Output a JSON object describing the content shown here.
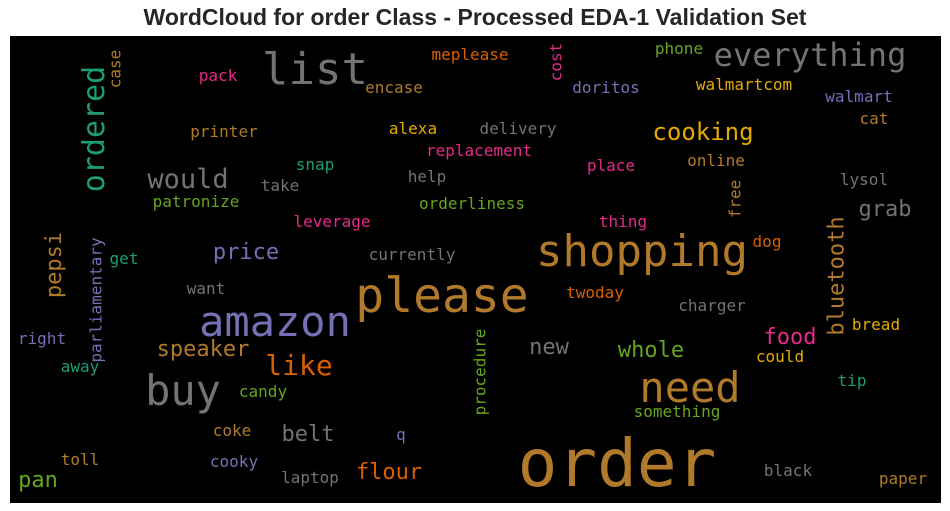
{
  "title": "WordCloud for order Class - Processed EDA-1 Validation Set",
  "chart_data": {
    "type": "wordcloud",
    "title": "WordCloud for order Class - Processed EDA-1 Validation Set",
    "background": "#000000",
    "words": [
      {
        "text": "order",
        "color": "#b07a2a"
      },
      {
        "text": "please",
        "color": "#b07a2a"
      },
      {
        "text": "shopping",
        "color": "#b07a2a"
      },
      {
        "text": "amazon",
        "color": "#7570b3"
      },
      {
        "text": "need",
        "color": "#b07a2a"
      },
      {
        "text": "buy",
        "color": "#737373"
      },
      {
        "text": "list",
        "color": "#737373"
      },
      {
        "text": "everything",
        "color": "#737373"
      },
      {
        "text": "ordered",
        "color": "#1b9e77"
      },
      {
        "text": "would",
        "color": "#737373"
      },
      {
        "text": "cooking",
        "color": "#e6ab02"
      },
      {
        "text": "like",
        "color": "#d95f02"
      },
      {
        "text": "speaker",
        "color": "#b07a2a"
      },
      {
        "text": "price",
        "color": "#7570b3"
      },
      {
        "text": "pepsi",
        "color": "#b07a2a"
      },
      {
        "text": "bluetooth",
        "color": "#b07a2a"
      },
      {
        "text": "grab",
        "color": "#737373"
      },
      {
        "text": "whole",
        "color": "#66a61e"
      },
      {
        "text": "new",
        "color": "#737373"
      },
      {
        "text": "food",
        "color": "#e7298a"
      },
      {
        "text": "flour",
        "color": "#d95f02"
      },
      {
        "text": "belt",
        "color": "#737373"
      },
      {
        "text": "pan",
        "color": "#66a61e"
      },
      {
        "text": "could",
        "color": "#e6ab02"
      },
      {
        "text": "bread",
        "color": "#e6ab02"
      },
      {
        "text": "tip",
        "color": "#1b9e77"
      },
      {
        "text": "paper",
        "color": "#b07a2a"
      },
      {
        "text": "black",
        "color": "#737373"
      },
      {
        "text": "laptop",
        "color": "#737373"
      },
      {
        "text": "cooky",
        "color": "#7570b3"
      },
      {
        "text": "toll",
        "color": "#b07a2a"
      },
      {
        "text": "coke",
        "color": "#b07a2a"
      },
      {
        "text": "candy",
        "color": "#66a61e"
      },
      {
        "text": "q",
        "color": "#7570b3"
      },
      {
        "text": "something",
        "color": "#66a61e"
      },
      {
        "text": "procedure",
        "color": "#66a61e"
      },
      {
        "text": "away",
        "color": "#1b9e77"
      },
      {
        "text": "right",
        "color": "#7570b3"
      },
      {
        "text": "parliamentary",
        "color": "#7570b3"
      },
      {
        "text": "get",
        "color": "#1b9e77"
      },
      {
        "text": "want",
        "color": "#737373"
      },
      {
        "text": "currently",
        "color": "#737373"
      },
      {
        "text": "twoday",
        "color": "#d95f02"
      },
      {
        "text": "charger",
        "color": "#737373"
      },
      {
        "text": "dog",
        "color": "#d95f02"
      },
      {
        "text": "free",
        "color": "#b07a2a"
      },
      {
        "text": "thing",
        "color": "#e7298a"
      },
      {
        "text": "orderliness",
        "color": "#66a61e"
      },
      {
        "text": "leverage",
        "color": "#e7298a"
      },
      {
        "text": "patronize",
        "color": "#66a61e"
      },
      {
        "text": "take",
        "color": "#737373"
      },
      {
        "text": "help",
        "color": "#737373"
      },
      {
        "text": "snap",
        "color": "#1b9e77"
      },
      {
        "text": "place",
        "color": "#e7298a"
      },
      {
        "text": "online",
        "color": "#b07a2a"
      },
      {
        "text": "lysol",
        "color": "#737373"
      },
      {
        "text": "replacement",
        "color": "#e7298a"
      },
      {
        "text": "printer",
        "color": "#b07a2a"
      },
      {
        "text": "alexa",
        "color": "#e6ab02"
      },
      {
        "text": "delivery",
        "color": "#737373"
      },
      {
        "text": "cat",
        "color": "#b07a2a"
      },
      {
        "text": "walmart",
        "color": "#7570b3"
      },
      {
        "text": "walmartcom",
        "color": "#e6ab02"
      },
      {
        "text": "doritos",
        "color": "#7570b3"
      },
      {
        "text": "encase",
        "color": "#b07a2a"
      },
      {
        "text": "pack",
        "color": "#e7298a"
      },
      {
        "text": "case",
        "color": "#b07a2a"
      },
      {
        "text": "meplease",
        "color": "#d95f02"
      },
      {
        "text": "cost",
        "color": "#e7298a"
      },
      {
        "text": "phone",
        "color": "#66a61e"
      }
    ]
  }
}
